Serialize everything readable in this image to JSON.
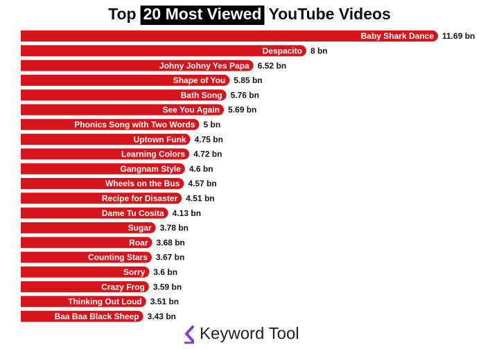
{
  "chart_data": {
    "type": "bar",
    "orientation": "horizontal",
    "title": [
      "Top",
      "20 Most Viewed",
      "YouTube Videos"
    ],
    "categories": [
      "Baby Shark Dance",
      "Despacito",
      "Johny Johny Yes Papa",
      "Shape of You",
      "Bath Song",
      "See You Again",
      "Phonics Song with Two Words",
      "Uptown Funk",
      "Learning Colors",
      "Gangnam Style",
      "Wheels on the Bus",
      "Recipe for Disaster",
      "Dame Tu Cosita",
      "Sugar",
      "Roar",
      "Counting Stars",
      "Sorry",
      "Crazy Frog",
      "Thinking Out Loud",
      "Baa Baa Black Sheep"
    ],
    "values": [
      11.69,
      8,
      6.52,
      5.85,
      5.76,
      5.69,
      5,
      4.75,
      4.72,
      4.6,
      4.57,
      4.51,
      4.13,
      3.78,
      3.68,
      3.67,
      3.6,
      3.59,
      3.51,
      3.43
    ],
    "value_labels": [
      "11.69 bn",
      "8 bn",
      "6.52 bn",
      "5.85 bn",
      "5.76 bn",
      "5.69 bn",
      "5 bn",
      "4.75 bn",
      "4.72 bn",
      "4.6 bn",
      "4.57 bn",
      "4.51 bn",
      "4.13 bn",
      "3.78 bn",
      "3.68 bn",
      "3.67 bn",
      "3.6 bn",
      "3.59 bn",
      "3.51 bn",
      "3.43 bn"
    ],
    "color": "#d7141c"
  },
  "footer": {
    "brand": "Keyword Tool"
  }
}
